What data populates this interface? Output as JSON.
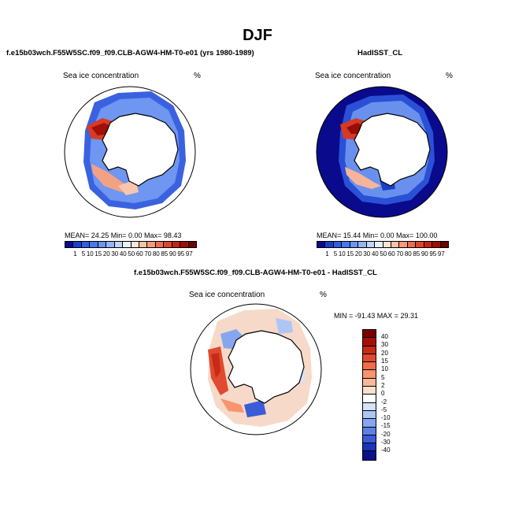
{
  "figure": {
    "season_title": "DJF",
    "left_title": "f.e15b03wch.F55W5SC.f09_f09.CLB-AGW4-HM-T0-e01 (yrs 1980-1989)",
    "right_title": "HadISST_CL",
    "diff_title": "f.e15b03wch.F55W5SC.f09_f09.CLB-AGW4-HM-T0-e01 - HadISST_CL"
  },
  "panels": {
    "model": {
      "label": "Sea ice concentration",
      "unit": "%",
      "stats": "MEAN=  24.25   Min=    0.00   Max=  98.43"
    },
    "obs": {
      "label": "Sea ice concentration",
      "unit": "%",
      "stats": "MEAN=  15.44   Min=    0.00   Max= 100.00"
    },
    "diff": {
      "label": "Sea ice concentration",
      "unit": "%",
      "stats": "MIN = -91.43  MAX =   29.31"
    }
  },
  "chart_data": [
    {
      "type": "heatmap",
      "title": "Sea ice concentration",
      "subtitle": "f.e15b03wch.F55W5SC.f09_f09.CLB-AGW4-HM-T0-e01 (yrs 1980-1989)",
      "projection": "south polar stereographic",
      "units": "%",
      "mean": 24.25,
      "min": 0.0,
      "max": 98.43,
      "levels": [
        "1",
        "5",
        "10",
        "15",
        "20",
        "30",
        "40",
        "50",
        "60",
        "70",
        "80",
        "85",
        "90",
        "95",
        "97"
      ],
      "colors": [
        "#0a0a8c",
        "#1a3fc9",
        "#2f5fe0",
        "#4878ec",
        "#6a96f2",
        "#94b4f6",
        "#c2d4fa",
        "#e8eefc",
        "#fbe3d6",
        "#f8c0a6",
        "#f49a7a",
        "#ec6e50",
        "#dc4430",
        "#c42414",
        "#9e0c06",
        "#6e0000"
      ]
    },
    {
      "type": "heatmap",
      "title": "Sea ice concentration",
      "subtitle": "HadISST_CL",
      "projection": "south polar stereographic",
      "units": "%",
      "mean": 15.44,
      "min": 0.0,
      "max": 100.0,
      "levels": [
        "1",
        "5",
        "10",
        "15",
        "20",
        "30",
        "40",
        "50",
        "60",
        "70",
        "80",
        "85",
        "90",
        "95",
        "97"
      ],
      "colors": [
        "#0a0a8c",
        "#1a3fc9",
        "#2f5fe0",
        "#4878ec",
        "#6a96f2",
        "#94b4f6",
        "#c2d4fa",
        "#e8eefc",
        "#fbe3d6",
        "#f8c0a6",
        "#f49a7a",
        "#ec6e50",
        "#dc4430",
        "#c42414",
        "#9e0c06",
        "#6e0000"
      ]
    },
    {
      "type": "heatmap",
      "title": "Sea ice concentration",
      "subtitle": "f.e15b03wch.F55W5SC.f09_f09.CLB-AGW4-HM-T0-e01 - HadISST_CL",
      "projection": "south polar stereographic",
      "units": "%",
      "min": -91.43,
      "max": 29.31,
      "levels": [
        "40",
        "30",
        "20",
        "15",
        "10",
        "5",
        "2",
        "0",
        "-2",
        "-5",
        "-10",
        "-15",
        "-20",
        "-30",
        "-40"
      ],
      "colors": [
        "#7a0000",
        "#a80f08",
        "#c82a18",
        "#e04a30",
        "#f06c4c",
        "#f8946e",
        "#fbb89a",
        "#fde0cc",
        "#ffffff",
        "#d4e2fa",
        "#aec6f6",
        "#86a6f0",
        "#5c80e6",
        "#3a5cd8",
        "#1c34b8",
        "#08128a"
      ]
    }
  ]
}
